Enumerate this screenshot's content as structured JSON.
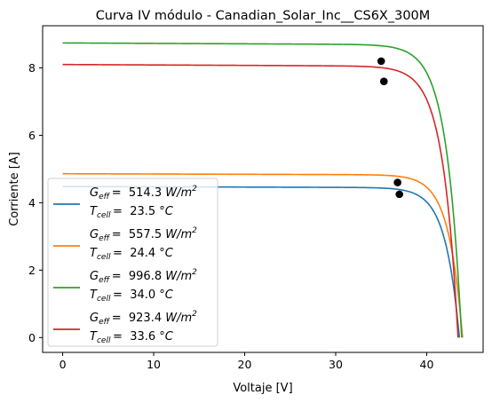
{
  "chart_data": {
    "type": "line",
    "title": "Curva IV módulo - Canadian_Solar_Inc__CS6X_300M",
    "xlabel": "Voltaje [V]",
    "ylabel": "Corriente [A]",
    "xlim": [
      -2.2,
      46.2
    ],
    "ylim": [
      -0.44,
      9.25
    ],
    "xticks": [
      0,
      10,
      20,
      30,
      40
    ],
    "yticks": [
      0,
      2,
      4,
      6,
      8
    ],
    "grid": false,
    "legend_position": "lower-left",
    "series": [
      {
        "color": "#1f77b4",
        "legend": {
          "g_value": "514.3",
          "t_value": "23.5"
        },
        "isc": 4.48,
        "voc": 43.6,
        "vt": 1.53,
        "slope": 0.0008,
        "mpp": {
          "v": 37.0,
          "i": 4.25
        }
      },
      {
        "color": "#ff7f0e",
        "legend": {
          "g_value": "557.5",
          "t_value": "24.4"
        },
        "isc": 4.86,
        "voc": 43.95,
        "vt": 1.53,
        "slope": 0.0008,
        "mpp": {
          "v": 36.8,
          "i": 4.6
        }
      },
      {
        "color": "#2ca02c",
        "legend": {
          "g_value": "996.8",
          "t_value": "34.0"
        },
        "isc": 8.74,
        "voc": 43.85,
        "vt": 1.64,
        "slope": 0.0013,
        "mpp": {
          "v": 35.0,
          "i": 8.2
        }
      },
      {
        "color": "#d62728",
        "legend": {
          "g_value": "923.4",
          "t_value": "33.6"
        },
        "isc": 8.1,
        "voc": 43.45,
        "vt": 1.64,
        "slope": 0.0013,
        "mpp": {
          "v": 35.3,
          "i": 7.6
        }
      }
    ]
  },
  "legend_text": {
    "g_label": "G",
    "g_sub": "eff",
    "t_label": "T",
    "t_sub": "cell",
    "eq": "=",
    "g_unit": "W/m",
    "g_unit_sup": "2",
    "t_unit": "°C"
  }
}
